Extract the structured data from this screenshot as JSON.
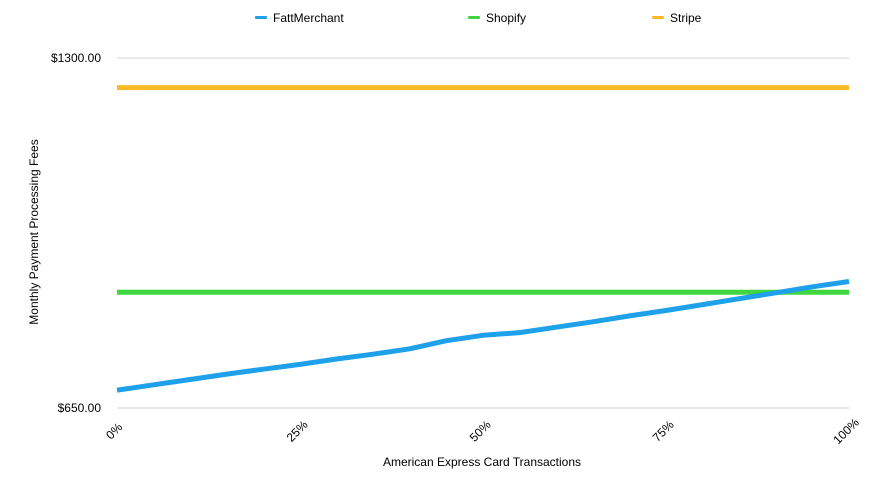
{
  "chart_data": {
    "type": "line",
    "title": "",
    "xlabel": "American Express Card Transactions",
    "ylabel": "Monthly Payment Processing Fees",
    "x": [
      0,
      5,
      10,
      15,
      20,
      25,
      30,
      35,
      40,
      45,
      50,
      55,
      60,
      65,
      70,
      75,
      80,
      85,
      90,
      95,
      100
    ],
    "x_tick_values": [
      0,
      25,
      50,
      75,
      100
    ],
    "x_tick_labels": [
      "0%",
      "25%",
      "50%",
      "75%",
      "100%"
    ],
    "y_tick_values": [
      650,
      1300
    ],
    "y_tick_labels": [
      "$650.00",
      "$1300.00"
    ],
    "ylim": [
      650,
      1300
    ],
    "xlim": [
      0,
      100
    ],
    "grid": "horizontal",
    "legend_position": "top",
    "series": [
      {
        "name": "FattMerchant",
        "color": "#1ea1ea",
        "values": [
          683,
          693,
          703,
          713,
          722,
          731,
          741,
          750,
          760,
          775,
          785,
          790,
          800,
          810,
          821,
          831,
          842,
          853,
          864,
          875,
          885
        ]
      },
      {
        "name": "Shopify",
        "color": "#3fd63f",
        "values": [
          865,
          865,
          865,
          865,
          865,
          865,
          865,
          865,
          865,
          865,
          865,
          865,
          865,
          865,
          865,
          865,
          865,
          865,
          865,
          865,
          865
        ]
      },
      {
        "name": "Stripe",
        "color": "#fbb928",
        "values": [
          1245,
          1245,
          1245,
          1245,
          1245,
          1245,
          1245,
          1245,
          1245,
          1245,
          1245,
          1245,
          1245,
          1245,
          1245,
          1245,
          1245,
          1245,
          1245,
          1245,
          1245
        ]
      }
    ]
  }
}
